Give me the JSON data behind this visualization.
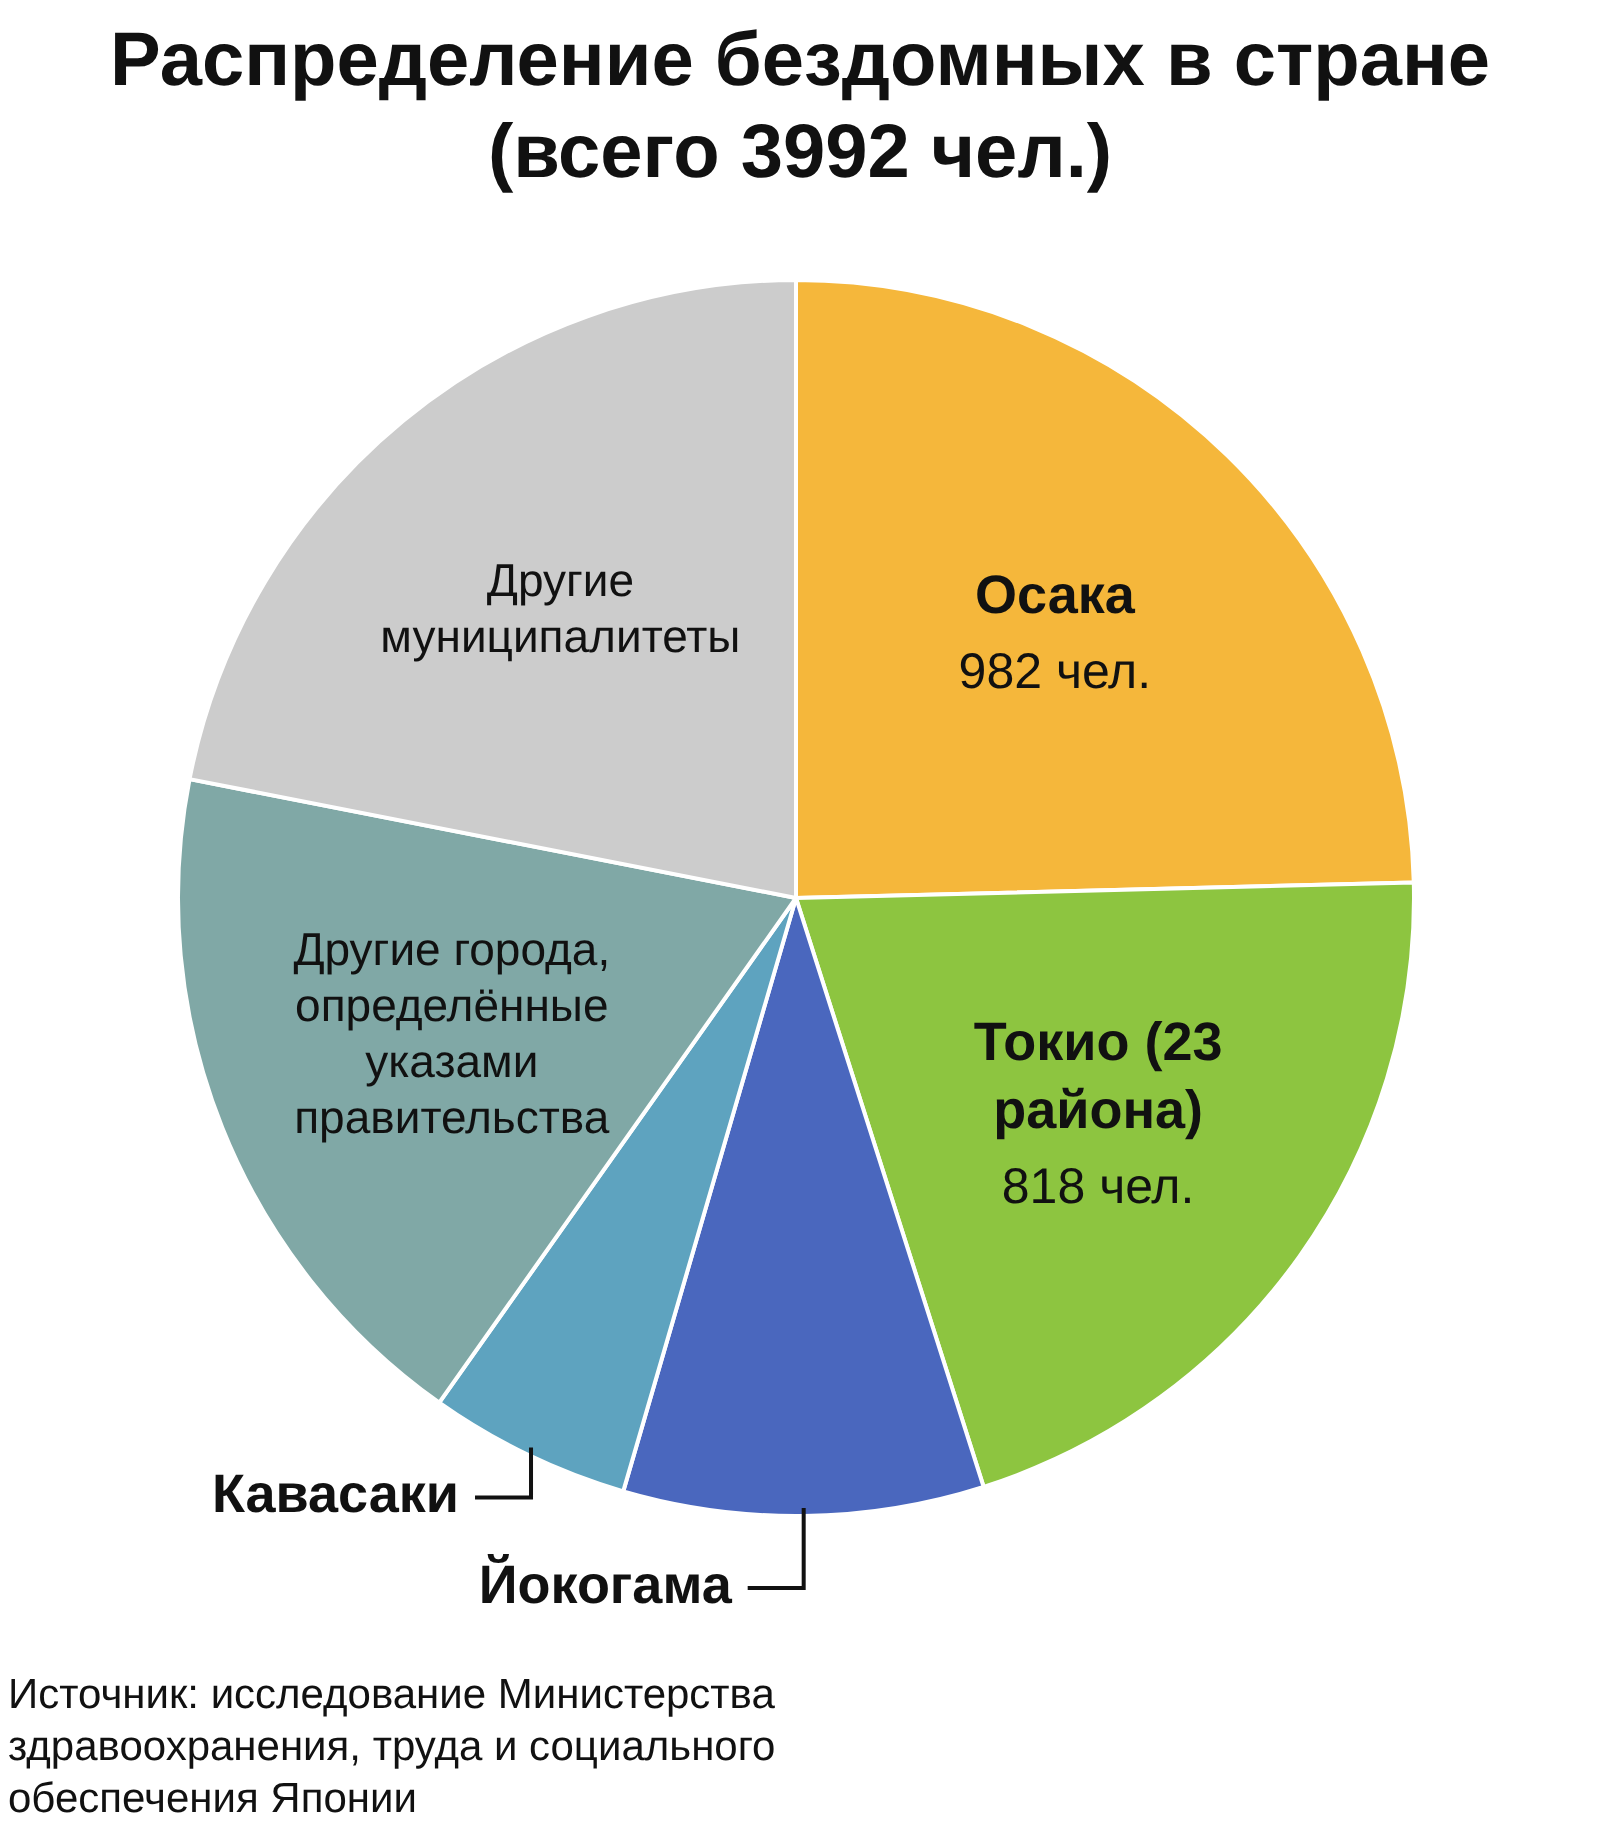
{
  "chart_data": {
    "type": "pie",
    "title": "Распределение бездомных в стране (всего 3992 чел.)",
    "categories": [
      "Осака",
      "Токио (23 района)",
      "Йокогама",
      "Кавасаки",
      "Другие города, определённые указами правительства",
      "Другие муниципалитеты"
    ],
    "values": [
      982,
      818,
      376,
      211,
      730,
      875
    ],
    "value_labels": [
      "982 чел.",
      "818 чел.",
      null,
      null,
      null,
      null
    ],
    "colors": [
      "#f5b73b",
      "#8dc540",
      "#4a67be",
      "#5ea3bf",
      "#80a8a6",
      "#cccccc"
    ],
    "annotations": [
      "Источник: исследование Министерства здравоохранения, труда и социального обеспечения Японии"
    ]
  }
}
